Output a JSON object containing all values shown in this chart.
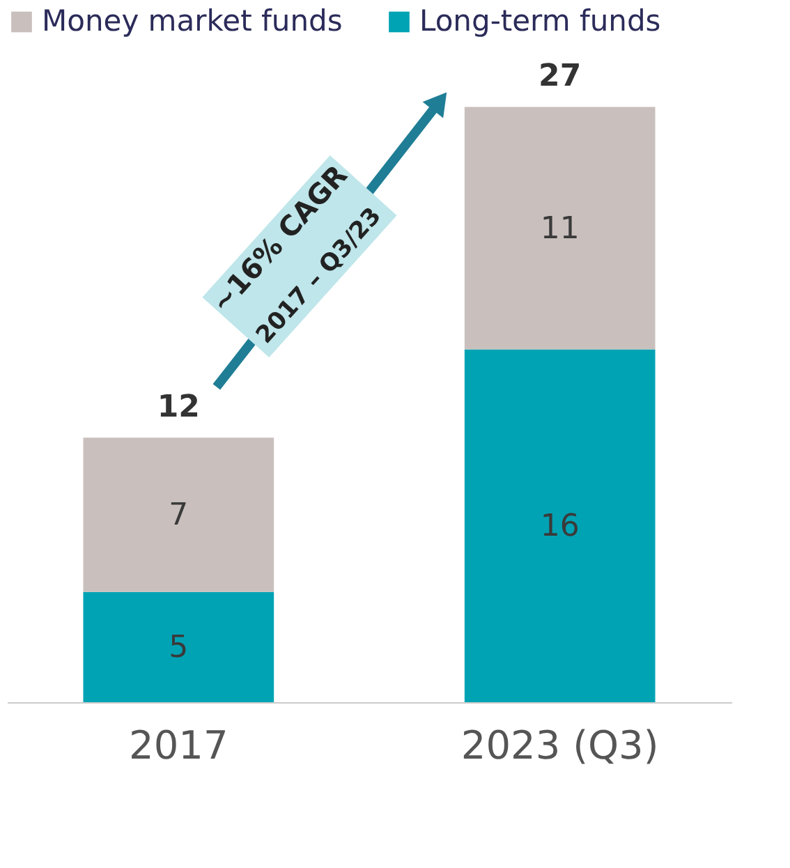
{
  "chart_data": {
    "type": "bar",
    "stacked": true,
    "categories": [
      "2017",
      "2023 (Q3)"
    ],
    "series": [
      {
        "name": "Long-term funds",
        "color": "#00a3b4",
        "values": [
          5,
          16
        ]
      },
      {
        "name": "Money market funds",
        "color": "#c9c0bd",
        "values": [
          7,
          11
        ]
      }
    ],
    "data_labels": true,
    "totals": [
      "12",
      "27"
    ],
    "legend": "top left",
    "grid": false,
    "annotations": [
      "~16% CAGR",
      "2017 – Q3/23"
    ]
  }
}
